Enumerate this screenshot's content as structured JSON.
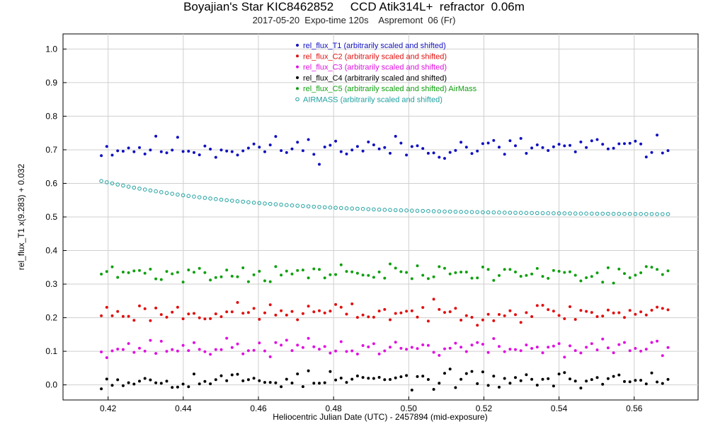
{
  "chart_data": {
    "type": "scatter",
    "title": "Boyajian's Star KIC8462852     CCD Atik314L+  refractor  0.06m",
    "subtitle": "2017-05-20  Expo-time 120s    Aspremont  06 (Fr)",
    "xlabel": "Heliocentric Julian Date (UTC) - 2457894 (mid-exposure)",
    "ylabel": "rel_flux_T1 x(9.283) + 0.032",
    "xlim": [
      0.408,
      0.577
    ],
    "ylim": [
      -0.045,
      1.045
    ],
    "xticks": [
      "0.42",
      "0.44",
      "0.46",
      "0.48",
      "0.50",
      "0.52",
      "0.54",
      "0.56"
    ],
    "yticks": [
      "0.0",
      "0.1",
      "0.2",
      "0.3",
      "0.4",
      "0.5",
      "0.6",
      "0.7",
      "0.8",
      "0.9",
      "1.0"
    ],
    "grid": true,
    "legend_position": "top-center",
    "x_start": 0.4182,
    "x_step": 0.00145,
    "n_points": 105,
    "series": [
      {
        "name": "rel_flux_T1 (arbitrarily scaled and shifted)",
        "color": "#1010c0",
        "marker": "filled",
        "base": 0.705,
        "amp": 0.022,
        "seed": 11
      },
      {
        "name": "rel_flux_C2 (arbitrarily scaled and shifted)",
        "color": "#e01010",
        "marker": "filled",
        "base": 0.215,
        "amp": 0.018,
        "seed": 23
      },
      {
        "name": "rel_flux_C3 (arbitrarily scaled and shifted)",
        "color": "#e010e0",
        "marker": "filled",
        "base": 0.11,
        "amp": 0.016,
        "seed": 37
      },
      {
        "name": "rel_flux_C4 (arbitrarily scaled and shifted)",
        "color": "#000000",
        "marker": "filled",
        "base": 0.015,
        "amp": 0.016,
        "seed": 53
      },
      {
        "name": "rel_flux_C5 (arbitrarily scaled and shifted) AirMass",
        "color": "#10a010",
        "marker": "filled",
        "base": 0.332,
        "amp": 0.016,
        "seed": 71
      },
      {
        "name": "AIRMASS (arbitrarily scaled and shifted)",
        "color": "#20a0a0",
        "marker": "hollow",
        "airmass": {
          "start": 0.607,
          "end": 0.506,
          "tau": 0.04
        }
      }
    ]
  }
}
